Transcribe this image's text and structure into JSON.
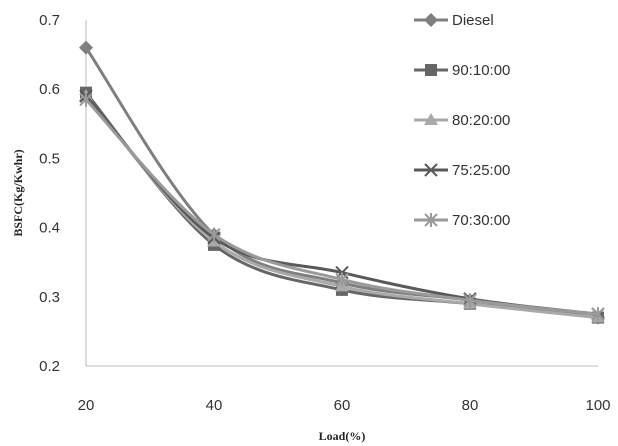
{
  "chart_data": {
    "type": "line",
    "title": "",
    "xlabel": "Load(%)",
    "ylabel": "BSFC(Kg/Kwhr)",
    "x": [
      20,
      40,
      60,
      80,
      100
    ],
    "xticks": [
      "20",
      "40",
      "60",
      "80",
      "100"
    ],
    "ylim": [
      0.2,
      0.7
    ],
    "yticks": [
      "0.2",
      "0.3",
      "0.4",
      "0.5",
      "0.6",
      "0.7"
    ],
    "grid": false,
    "legend_position": "right",
    "series": [
      {
        "name": "Diesel",
        "values": [
          0.66,
          0.39,
          0.32,
          0.295,
          0.27
        ],
        "marker": "diamond",
        "color": "#7f7f7f"
      },
      {
        "name": "90:10:00",
        "values": [
          0.595,
          0.375,
          0.31,
          0.29,
          0.27
        ],
        "marker": "square",
        "color": "#666666"
      },
      {
        "name": "80:20:00",
        "values": [
          0.59,
          0.38,
          0.315,
          0.29,
          0.27
        ],
        "marker": "triangle",
        "color": "#a9a9a9"
      },
      {
        "name": "75:25:00",
        "values": [
          0.59,
          0.385,
          0.335,
          0.297,
          0.275
        ],
        "marker": "x",
        "color": "#595959"
      },
      {
        "name": "70:30:00",
        "values": [
          0.585,
          0.39,
          0.325,
          0.295,
          0.275
        ],
        "marker": "star",
        "color": "#9a9a9a"
      }
    ]
  }
}
